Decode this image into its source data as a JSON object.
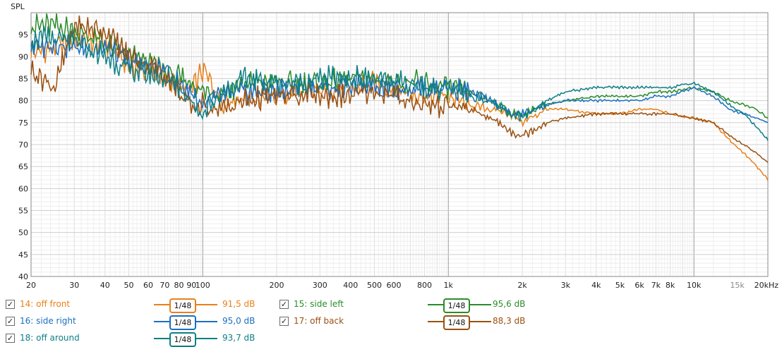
{
  "chart_data": {
    "type": "line",
    "ylabel": "SPL",
    "x_scale": "log",
    "xlim": [
      20,
      20000
    ],
    "ylim": [
      40,
      100
    ],
    "y_ticks": [
      "95",
      "90",
      "85",
      "80",
      "75",
      "70",
      "65",
      "60",
      "55",
      "50",
      "45",
      "40"
    ],
    "x_ticks": [
      "20",
      "30",
      "40",
      "50",
      "60",
      "70",
      "80",
      "90",
      "100",
      "200",
      "300",
      "400",
      "500",
      "600",
      "800",
      "1k",
      "2k",
      "3k",
      "4k",
      "5k",
      "6k",
      "7k",
      "8k",
      "10k",
      "15k",
      "20kHz"
    ],
    "series": [
      {
        "name": "14: off front",
        "color": "#e8801a",
        "smoothing": "1/48",
        "level": "91,5 dB",
        "x": [
          20,
          25,
          30,
          40,
          50,
          60,
          70,
          80,
          90,
          100,
          120,
          150,
          200,
          250,
          300,
          400,
          500,
          600,
          800,
          1000,
          1200,
          1500,
          1800,
          2000,
          2500,
          3000,
          4000,
          5000,
          6000,
          7000,
          8000,
          10000,
          12000,
          14000,
          16000,
          18000,
          20000
        ],
        "y": [
          91,
          92,
          94,
          93,
          88,
          87,
          85,
          83,
          82,
          87,
          80,
          81,
          81,
          82,
          82,
          83,
          84,
          83,
          81,
          81,
          79,
          78,
          77,
          75,
          78,
          78,
          77,
          77,
          78,
          78,
          77,
          76,
          75,
          71,
          68,
          65,
          62
        ]
      },
      {
        "name": "15: side left",
        "color": "#2a8c2a",
        "smoothing": "1/48",
        "level": "95,6 dB",
        "x": [
          20,
          25,
          30,
          40,
          50,
          60,
          70,
          80,
          90,
          100,
          120,
          150,
          200,
          250,
          300,
          400,
          500,
          600,
          800,
          1000,
          1200,
          1500,
          1800,
          2000,
          2500,
          3000,
          4000,
          5000,
          6000,
          7000,
          8000,
          10000,
          12000,
          14000,
          16000,
          18000,
          20000
        ],
        "y": [
          97,
          97,
          96,
          93,
          90,
          89,
          87,
          85,
          84,
          82,
          82,
          84,
          84,
          84,
          84,
          85,
          85,
          84,
          84,
          83,
          82,
          80,
          77,
          77,
          79,
          80,
          81,
          81,
          81,
          82,
          82,
          83,
          82,
          80,
          79,
          78,
          76
        ]
      },
      {
        "name": "16: side right",
        "color": "#1a6fc0",
        "smoothing": "1/48",
        "level": "95,0 dB",
        "x": [
          20,
          25,
          30,
          40,
          50,
          60,
          70,
          80,
          90,
          100,
          120,
          150,
          200,
          250,
          300,
          400,
          500,
          600,
          800,
          1000,
          1200,
          1500,
          1800,
          2000,
          2500,
          3000,
          4000,
          5000,
          6000,
          7000,
          8000,
          10000,
          12000,
          14000,
          16000,
          18000,
          20000
        ],
        "y": [
          92,
          93,
          92,
          92,
          89,
          88,
          87,
          84,
          82,
          79,
          81,
          82,
          82,
          83,
          83,
          83,
          84,
          83,
          83,
          83,
          82,
          80,
          77,
          77,
          79,
          80,
          80,
          80,
          80,
          81,
          81,
          83,
          81,
          78,
          77,
          76,
          75
        ]
      },
      {
        "name": "17: off back",
        "color": "#9a5010",
        "smoothing": "1/48",
        "level": "88,3 dB",
        "x": [
          20,
          25,
          30,
          40,
          50,
          60,
          70,
          80,
          90,
          100,
          120,
          150,
          200,
          250,
          300,
          400,
          500,
          600,
          800,
          1000,
          1200,
          1500,
          1800,
          2000,
          2500,
          3000,
          4000,
          5000,
          6000,
          7000,
          8000,
          10000,
          12000,
          14000,
          16000,
          18000,
          20000
        ],
        "y": [
          87,
          83,
          97,
          96,
          90,
          88,
          86,
          82,
          78,
          79,
          78,
          80,
          81,
          81,
          81,
          81,
          82,
          81,
          79,
          79,
          78,
          76,
          73,
          72,
          75,
          76,
          77,
          77,
          77,
          77,
          77,
          76,
          75,
          72,
          70,
          68,
          66
        ]
      },
      {
        "name": "18: off around",
        "color": "#0e7f86",
        "smoothing": "1/48",
        "level": "93,7 dB",
        "x": [
          20,
          25,
          30,
          40,
          50,
          60,
          70,
          80,
          90,
          100,
          120,
          150,
          200,
          250,
          300,
          400,
          500,
          600,
          800,
          1000,
          1200,
          1500,
          1800,
          2000,
          2500,
          3000,
          4000,
          5000,
          6000,
          7000,
          8000,
          10000,
          12000,
          14000,
          16000,
          18000,
          20000
        ],
        "y": [
          94,
          94,
          93,
          90,
          87,
          86,
          85,
          83,
          80,
          77,
          82,
          85,
          84,
          84,
          85,
          85,
          85,
          84,
          83,
          83,
          81,
          80,
          77,
          76,
          80,
          82,
          83,
          83,
          83,
          83,
          83,
          84,
          82,
          79,
          77,
          74,
          71
        ]
      }
    ]
  }
}
